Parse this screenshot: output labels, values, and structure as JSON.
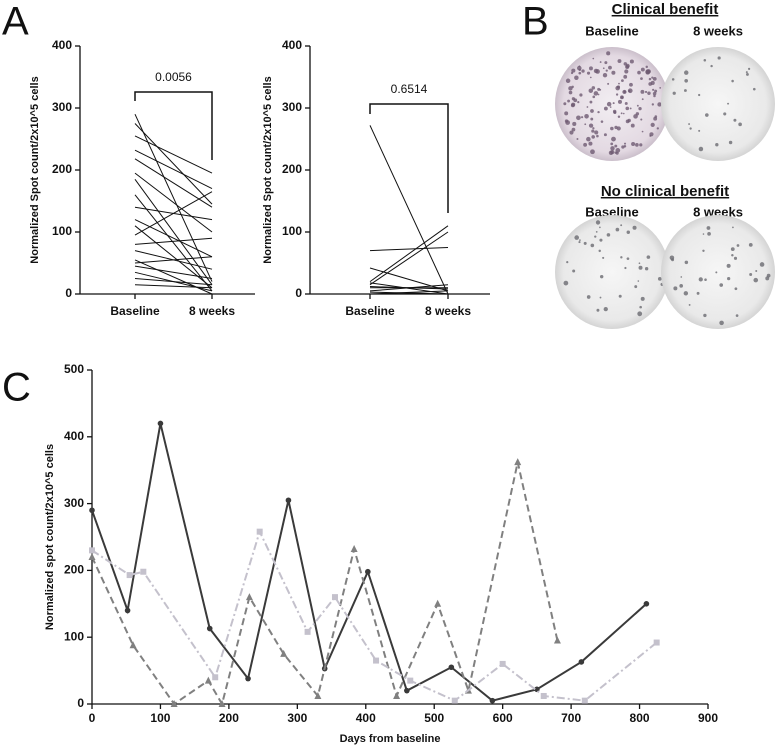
{
  "panel_letters": [
    "A",
    "B",
    "C"
  ],
  "panel_b": {
    "groups": [
      {
        "title": "Clinical benefit",
        "columns": [
          "Baseline",
          "8 weeks"
        ]
      },
      {
        "title": "No clinical benefit",
        "columns": [
          "Baseline",
          "8 weeks"
        ]
      }
    ]
  },
  "chart_data": [
    {
      "type": "paired",
      "y_label": "Normalized Spot count/2x10^5 cells",
      "annotation": "0.0056",
      "categories": [
        "Baseline",
        "8 weeks"
      ],
      "ylim": [
        0,
        400
      ],
      "yticks": [
        0,
        100,
        200,
        300,
        400
      ],
      "color": "#111111",
      "pairs": [
        [
          290,
          20
        ],
        [
          275,
          145
        ],
        [
          255,
          195
        ],
        [
          232,
          170
        ],
        [
          218,
          140
        ],
        [
          195,
          100
        ],
        [
          185,
          15
        ],
        [
          160,
          5
        ],
        [
          140,
          120
        ],
        [
          120,
          60
        ],
        [
          110,
          10
        ],
        [
          95,
          165
        ],
        [
          80,
          90
        ],
        [
          70,
          40
        ],
        [
          55,
          0
        ],
        [
          50,
          60
        ],
        [
          45,
          25
        ],
        [
          35,
          5
        ],
        [
          25,
          15
        ],
        [
          15,
          10
        ]
      ]
    },
    {
      "type": "paired",
      "y_label": "Normalized Spot count/2x10^5 cells",
      "annotation": "0.6514",
      "categories": [
        "Baseline",
        "8 weeks"
      ],
      "ylim": [
        0,
        400
      ],
      "yticks": [
        0,
        100,
        200,
        300,
        400
      ],
      "color": "#111111",
      "pairs": [
        [
          272,
          0
        ],
        [
          70,
          75
        ],
        [
          42,
          5
        ],
        [
          20,
          110
        ],
        [
          15,
          100
        ],
        [
          10,
          10
        ],
        [
          5,
          15
        ],
        [
          3,
          0
        ],
        [
          0,
          5
        ],
        [
          18,
          0
        ],
        [
          12,
          8
        ]
      ]
    },
    {
      "type": "line",
      "x_label": "Days from baseline",
      "y_label": "Normalized spot count/2x10^5 cells",
      "xlim": [
        0,
        900
      ],
      "xticks": [
        0,
        100,
        200,
        300,
        400,
        500,
        600,
        700,
        800,
        900
      ],
      "ylim": [
        0,
        500
      ],
      "yticks": [
        0,
        100,
        200,
        300,
        400,
        500
      ],
      "series": [
        {
          "color": "#3a3a3a",
          "dash": "solid",
          "marker": "circle",
          "x": [
            0,
            52,
            100,
            172,
            228,
            287,
            340,
            403,
            460,
            525,
            585,
            650,
            715,
            810
          ],
          "y": [
            290,
            140,
            420,
            113,
            38,
            305,
            53,
            198,
            20,
            55,
            5,
            22,
            63,
            150
          ]
        },
        {
          "color": "#808080",
          "dash": "dashed",
          "marker": "triangle",
          "x": [
            0,
            60,
            120,
            170,
            190,
            230,
            280,
            330,
            383,
            445,
            505,
            550,
            622,
            680
          ],
          "y": [
            220,
            88,
            0,
            35,
            0,
            160,
            75,
            12,
            232,
            12,
            150,
            20,
            362,
            95
          ]
        },
        {
          "color": "#c4c1cc",
          "dash": "dashdot",
          "marker": "square",
          "x": [
            0,
            55,
            75,
            180,
            245,
            315,
            355,
            415,
            465,
            530,
            600,
            660,
            720,
            825
          ],
          "y": [
            230,
            193,
            198,
            40,
            258,
            108,
            160,
            65,
            35,
            5,
            60,
            12,
            5,
            92
          ]
        }
      ]
    }
  ]
}
